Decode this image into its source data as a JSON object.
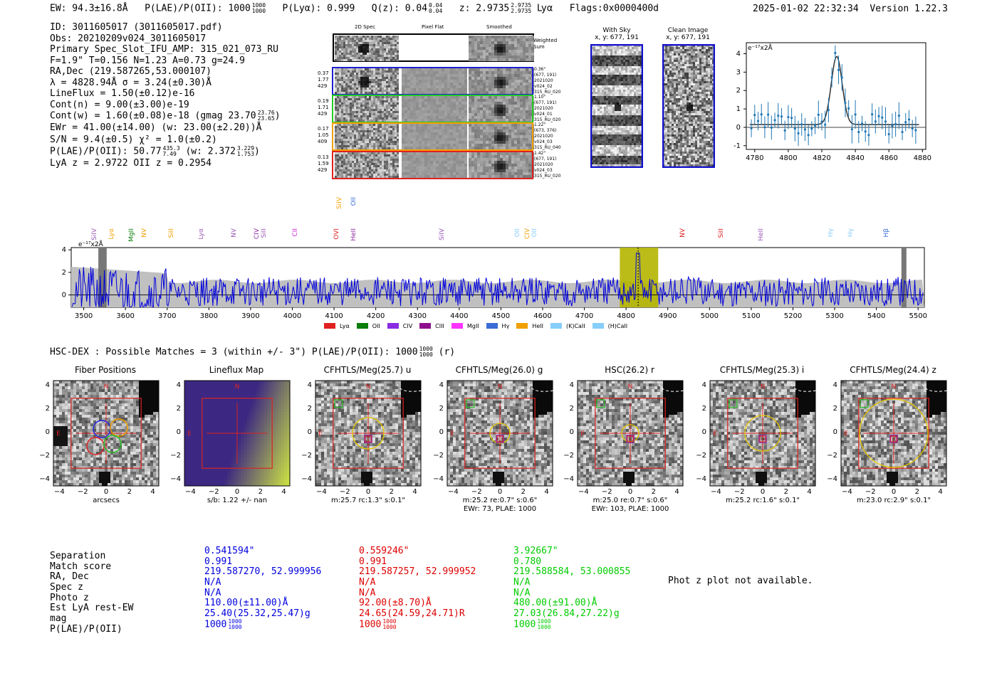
{
  "header": {
    "ew": "EW: 94.3±16.8Å",
    "plae_label": "P(LAE)/P(OII): 1000",
    "plae_hi": "1000",
    "plae_lo": "1000",
    "plya": "P(Lyα): 0.999",
    "qz_label": "Q(z): 0.04",
    "qz_hi": "0.04",
    "qz_lo": "0.04",
    "z_label": "z: 2.9735",
    "z_hi": "2.9735",
    "z_lo": "2.9735",
    "line": "Lyα",
    "flags": "Flags:0x0000400d",
    "datetime": "2025-01-02 22:32:34",
    "version": "Version 1.22.3"
  },
  "info": {
    "lines": [
      "ID: 3011605017 (3011605017.pdf)",
      "Obs: 20210209v024_3011605017",
      "Primary Spec_Slot_IFU_AMP: 315_021_073_RU",
      "F=1.9\"  T=0.156  N=1.23  A=0.73  g=24.9",
      "RA,Dec (219.587265,53.000107)",
      "λ = 4828.94Å  σ = 3.24(±0.30)Å",
      "LineFlux = 1.50(±0.12)e-16",
      "Cont(n) = 9.00(±3.00)e-19"
    ],
    "contw": "Cont(w) = 1.60(±0.08)e-18 (gmag 23.70",
    "contw_hi": "23.76",
    "contw_lo": "23.65",
    "ewr": "EWr = 41.00(±14.00) (w: 23.00(±2.20))Å",
    "sn": "S/N = 9.4(±0.5)  χ² = 1.0(±0.2)",
    "plae2": "P(LAE)/P(OII): 50.77",
    "plae2_hi": "435.3",
    "plae2_lo": "7.49",
    "plae2_w": "(w: 2.372",
    "plae2_w_hi": "3.229",
    "plae2_w_lo": "1.753",
    "lyaz": "LyA z = 2.9722  OII z = 0.2954"
  },
  "fibers": {
    "col_titles": [
      "2D Spec",
      "Pixel Flat",
      "Smoothed"
    ],
    "weighted_sum": "Weighted Sum",
    "rows": [
      {
        "left": [
          "0.37",
          "1.77",
          "429"
        ],
        "right": [
          "0.36\"",
          "(677, 191)",
          "2021020",
          "v024_02",
          "315_RU_020"
        ],
        "color": "#1f1fd0"
      },
      {
        "left": [
          "0.19",
          "1.71",
          "429"
        ],
        "right": [
          "1.10\"",
          "(677, 191)",
          "2021020",
          "v024_01",
          "315_RU_020"
        ],
        "color": "#22cc22"
      },
      {
        "left": [
          "0.17",
          "1.05",
          "409"
        ],
        "right": [
          "1.22\"",
          "(673, 376)",
          "2021020",
          "v024_03",
          "315_RU_040"
        ],
        "color": "#f2a000"
      },
      {
        "left": [
          "0.13",
          "1.59",
          "429"
        ],
        "right": [
          "1.42\"",
          "(677, 191)",
          "2021020",
          "v024_03",
          "315_RU_020"
        ],
        "color": "#e02020"
      }
    ]
  },
  "sky": {
    "with_sky_title": "With Sky",
    "with_sky_coords": "x, y: 677, 191",
    "clean_title": "Clean Image",
    "clean_coords": "x, y: 677, 191"
  },
  "zoom_plot": {
    "ylabel": "e⁻¹⁷x2Å",
    "xticks": [
      "4780",
      "4800",
      "4820",
      "4840",
      "4860",
      "4880"
    ],
    "yticks": [
      "4",
      "3",
      "2",
      "1",
      "0",
      "-1"
    ]
  },
  "spectrum": {
    "ylabel": "e⁻¹⁷x2Å",
    "xticks": [
      "3500",
      "3600",
      "3700",
      "3800",
      "3900",
      "4000",
      "4100",
      "4200",
      "4300",
      "4400",
      "4500",
      "4600",
      "4700",
      "4800",
      "4900",
      "5000",
      "5100",
      "5200",
      "5300",
      "5400",
      "5500"
    ],
    "yticks": [
      "4",
      "2",
      "0"
    ],
    "line_labels": [
      {
        "t": "SiIV",
        "c": "#9b59b6"
      },
      {
        "t": "Lyα",
        "c": "#f2a000"
      },
      {
        "t": "MgII",
        "c": "#0a7d0a"
      },
      {
        "t": "NV",
        "c": "#f2a000"
      },
      {
        "t": "SiII",
        "c": "#f2a000"
      },
      {
        "t": "Lyα",
        "c": "#9b59b6"
      },
      {
        "t": "NV",
        "c": "#9b59b6"
      },
      {
        "t": "CIV",
        "c": "#8e2ba0"
      },
      {
        "t": "SiII",
        "c": "#9b59b6"
      },
      {
        "t": "CII",
        "c": "#d020d0"
      },
      {
        "t": "OVI",
        "c": "#e02020"
      },
      {
        "t": "SiIV",
        "c": "#f2a000"
      },
      {
        "t": "HeII",
        "c": "#8e2ba0"
      },
      {
        "t": "OII",
        "c": "#3a6cd6"
      },
      {
        "t": "SiIV",
        "c": "#9b59b6"
      },
      {
        "t": "OII",
        "c": "#87cefa"
      },
      {
        "t": "CIV",
        "c": "#f2a000"
      },
      {
        "t": "OII",
        "c": "#87cefa"
      },
      {
        "t": "NV",
        "c": "#e02020"
      },
      {
        "t": "SiII",
        "c": "#e02020"
      },
      {
        "t": "HeII",
        "c": "#9b59b6"
      },
      {
        "t": "Hγ",
        "c": "#87cefa"
      },
      {
        "t": "Hγ",
        "c": "#87cefa"
      },
      {
        "t": "Hβ",
        "c": "#3a6cd6"
      }
    ],
    "legend": [
      {
        "t": "Lyα",
        "c": "#e02020"
      },
      {
        "t": "OII",
        "c": "#0a7d0a"
      },
      {
        "t": "CIV",
        "c": "#8a2be2"
      },
      {
        "t": "CIII",
        "c": "#8e0d8e"
      },
      {
        "t": "MgII",
        "c": "#ff33ff"
      },
      {
        "t": "Hγ",
        "c": "#3a6cd6"
      },
      {
        "t": "HeII",
        "c": "#f2a000"
      },
      {
        "t": "(K)CaII",
        "c": "#87cefa"
      },
      {
        "t": "(H)CaII",
        "c": "#87cefa"
      }
    ]
  },
  "hsc": {
    "title": "HSC-DEX : Possible Matches = 3 (within +/- 3\")  P(LAE)/P(OII): 1000",
    "hi": "1000",
    "lo": "1000",
    "suffix": "(r)"
  },
  "cutouts": [
    {
      "title": "Fiber Positions",
      "lines": [
        "arcsecs"
      ]
    },
    {
      "title": "Lineflux Map",
      "lines": [
        "s/b: 1.22 +/- nan"
      ]
    },
    {
      "title": "CFHTLS/Meg(25.7) u",
      "lines": [
        "m:25.7 rc:1.3\"  s:0.1\""
      ]
    },
    {
      "title": "CFHTLS/Meg(26.0) g",
      "lines": [
        "m:25.2  re:0.7\"  s:0.6\"",
        "EWr: 73, PLAE: 1000"
      ]
    },
    {
      "title": "HSC(26.2) r",
      "lines": [
        "m:25.0  re:0.7\"  s:0.6\"",
        "EWr: 103, PLAE: 1000"
      ]
    },
    {
      "title": "CFHTLS/Meg(25.3) i",
      "lines": [
        "m:25.2 rc:1.6\"  s:0.1\""
      ]
    },
    {
      "title": "CFHTLS/Meg(24.4) z",
      "lines": [
        "m:23.0 rc:2.9\"  s:0.1\""
      ]
    }
  ],
  "cut_axis": {
    "xticks": [
      "−4",
      "−2",
      "0",
      "2",
      "4"
    ],
    "yticks": [
      "4",
      "2",
      "0",
      "−2",
      "−4"
    ],
    "north": "N",
    "east": "E"
  },
  "matches": {
    "labels": [
      "Separation",
      "Match score",
      "RA, Dec",
      "Spec z",
      "Photo z",
      "Est LyA rest-EW",
      "mag",
      "P(LAE)/P(OII)"
    ],
    "columns": [
      {
        "color": "#0000dd",
        "values": [
          "0.541594\"",
          "0.991",
          "219.587270, 52.999956",
          "N/A",
          "N/A",
          "110.00(±11.00)Å",
          "25.40(25.32,25.47)g",
          "1000"
        ],
        "hi": "1000",
        "lo": "1000"
      },
      {
        "color": "#dd0000",
        "values": [
          "0.559246\"",
          "0.991",
          "219.587257, 52.999952",
          "N/A",
          "N/A",
          "92.00(±8.70)Å",
          "24.65(24.59,24.71)R",
          "1000"
        ],
        "hi": "1000",
        "lo": "1000"
      },
      {
        "color": "#00cc00",
        "values": [
          "3.92667\"",
          "0.780",
          "219.588584, 53.000855",
          "N/A",
          "N/A",
          "480.00(±91.00)Å",
          "27.03(26.84,27.22)g",
          "1000"
        ],
        "hi": "1000",
        "lo": "1000"
      }
    ],
    "photz_note": "Phot z plot not available."
  }
}
